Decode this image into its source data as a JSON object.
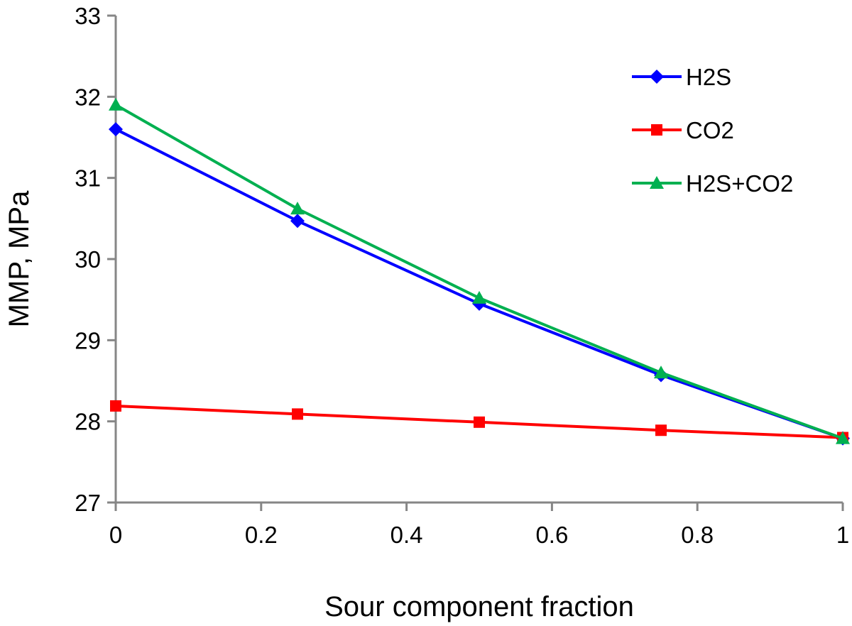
{
  "chart_data": {
    "type": "line",
    "title": "",
    "xlabel": "Sour component fraction",
    "ylabel": "MMP, MPa",
    "x": [
      0,
      0.25,
      0.5,
      0.75,
      1
    ],
    "xlim": [
      0,
      1
    ],
    "ylim": [
      27,
      33
    ],
    "x_ticks": [
      0,
      0.2,
      0.4,
      0.6,
      0.8,
      1
    ],
    "x_tick_labels": [
      "0",
      "0.2",
      "0.4",
      "0.6",
      "0.8",
      "1"
    ],
    "y_ticks": [
      27,
      28,
      29,
      30,
      31,
      32,
      33
    ],
    "y_tick_labels": [
      "27",
      "28",
      "29",
      "30",
      "31",
      "32",
      "33"
    ],
    "grid": false,
    "legend_position": "top-right",
    "series": [
      {
        "name": "H2S",
        "color": "#0000FF",
        "marker": "diamond",
        "values": [
          31.6,
          30.47,
          29.45,
          28.57,
          27.79
        ]
      },
      {
        "name": "CO2",
        "color": "#FF0000",
        "marker": "square",
        "values": [
          28.19,
          28.09,
          27.99,
          27.89,
          27.8
        ]
      },
      {
        "name": "H2S+CO2",
        "color": "#00B050",
        "marker": "triangle",
        "values": [
          31.9,
          30.62,
          29.52,
          28.6,
          27.79
        ]
      }
    ]
  }
}
